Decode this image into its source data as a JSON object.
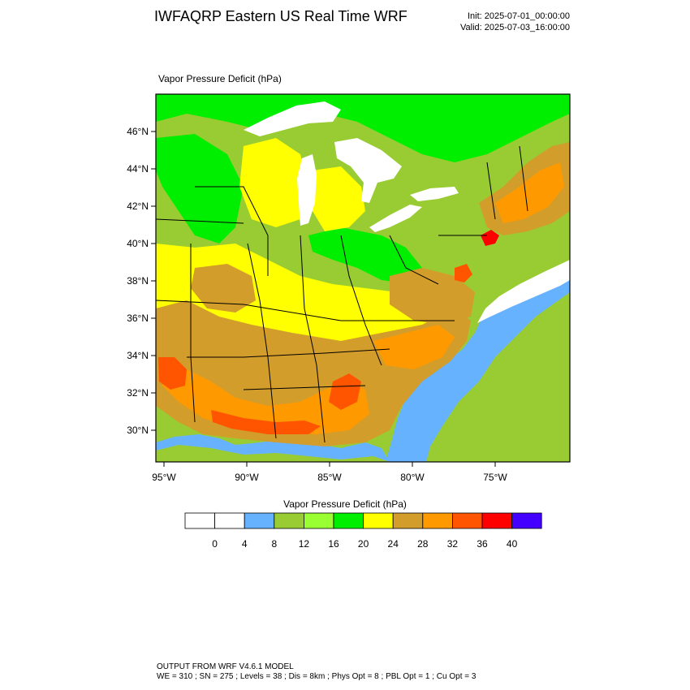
{
  "header": {
    "title": "IWFAQRP Eastern US Real Time WRF",
    "init": "Init: 2025-07-01_00:00:00",
    "valid": "Valid: 2025-07-03_16:00:00"
  },
  "map": {
    "field_label": "Vapor Pressure Deficit   (hPa)",
    "lat_labels": [
      "46°N",
      "44°N",
      "42°N",
      "40°N",
      "38°N",
      "36°N",
      "34°N",
      "32°N",
      "30°N"
    ],
    "lon_labels": [
      "95°W",
      "90°W",
      "85°W",
      "80°W",
      "75°W"
    ],
    "colors": {
      "water": "#66b2ff",
      "land_low": "#99cc33",
      "land_cool": "#00ee00",
      "land_mid": "#ffff00",
      "land_warm": "#d39d2b",
      "land_hot": "#ff9900",
      "land_hotter": "#ff5500",
      "land_hottest": "#ff0000",
      "lake": "#ffffff",
      "border": "#000000"
    }
  },
  "colorbar": {
    "title": "Vapor Pressure Deficit  (hPa)",
    "colors": [
      "#ffffff",
      "#ffffff",
      "#66b2ff",
      "#99cc33",
      "#99ff33",
      "#00ee00",
      "#ffff00",
      "#d39d2b",
      "#ff9900",
      "#ff5500",
      "#ff0000",
      "#4400ff"
    ],
    "tick_labels": [
      "0",
      "4",
      "8",
      "12",
      "16",
      "20",
      "24",
      "28",
      "32",
      "36",
      "40"
    ]
  },
  "footer": {
    "line1": "OUTPUT FROM WRF V4.6.1 MODEL",
    "line2": "WE = 310 ; SN = 275 ; Levels = 38 ; Dis = 8km ; Phys Opt = 8 ; PBL Opt = 1 ; Cu Opt = 3"
  }
}
